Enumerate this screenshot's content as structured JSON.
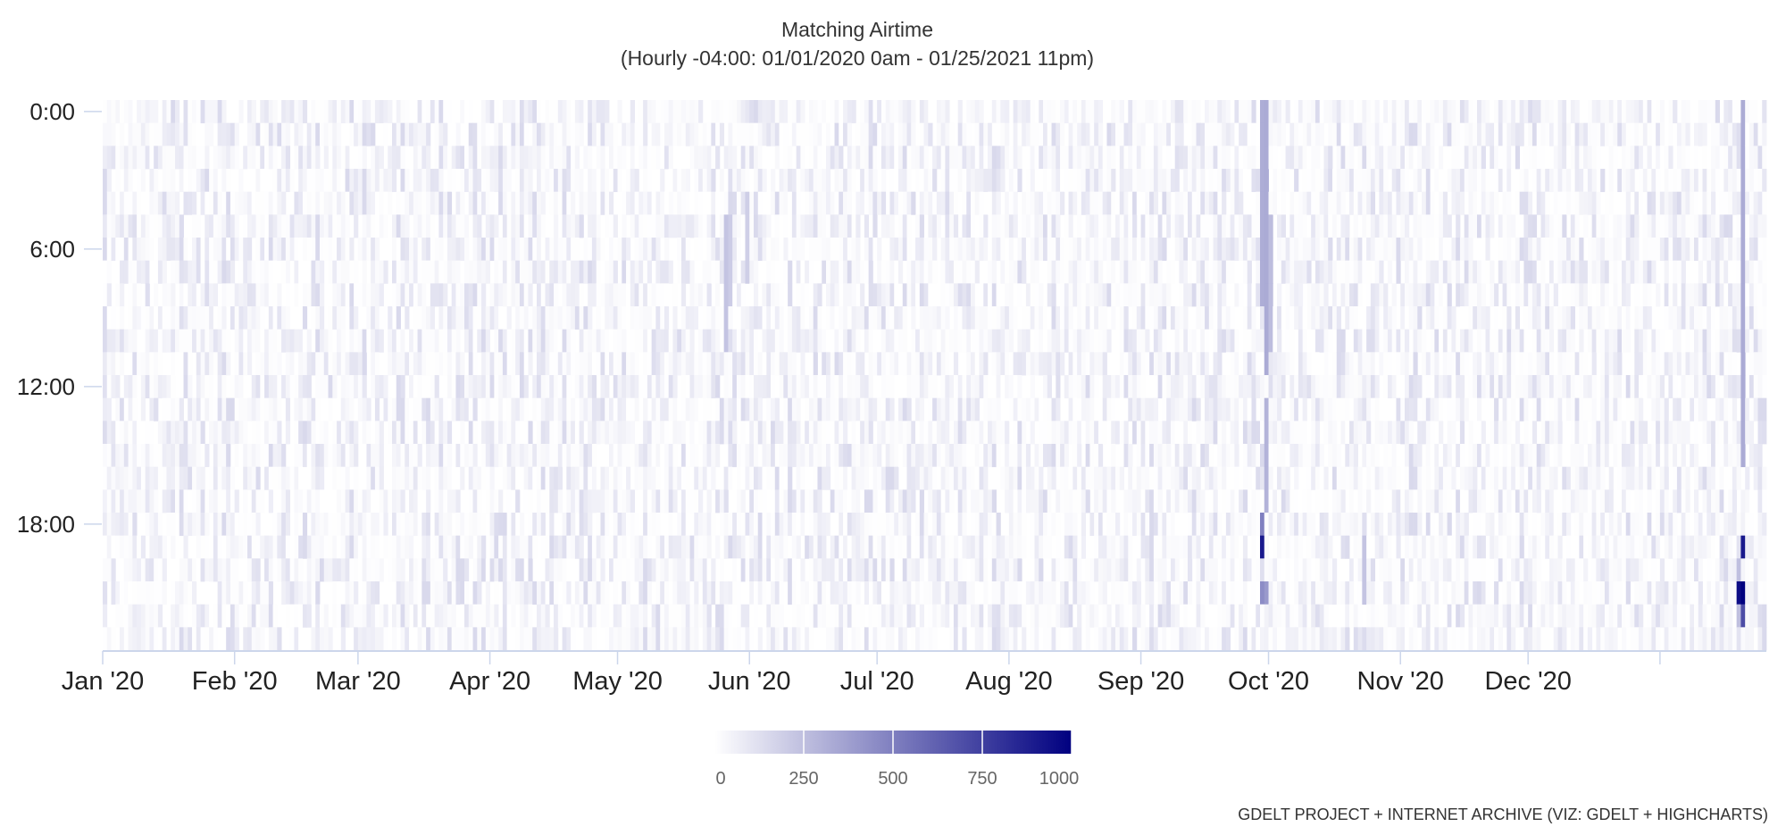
{
  "chart_data": {
    "type": "heatmap",
    "title": "Matching Airtime",
    "subtitle": "(Hourly -04:00: 01/01/2020 0am - 01/25/2021 11pm)",
    "credits": "GDELT PROJECT + INTERNET ARCHIVE (VIZ: GDELT + HIGHCHARTS)",
    "x_range": [
      "2020-01-01",
      "2021-01-25"
    ],
    "x_ticks": [
      {
        "date": "2020-01-01",
        "label": "Jan '20"
      },
      {
        "date": "2020-02-01",
        "label": "Feb '20"
      },
      {
        "date": "2020-03-01",
        "label": "Mar '20"
      },
      {
        "date": "2020-04-01",
        "label": "Apr '20"
      },
      {
        "date": "2020-05-01",
        "label": "May '20"
      },
      {
        "date": "2020-06-01",
        "label": "Jun '20"
      },
      {
        "date": "2020-07-01",
        "label": "Jul '20"
      },
      {
        "date": "2020-08-01",
        "label": "Aug '20"
      },
      {
        "date": "2020-09-01",
        "label": "Sep '20"
      },
      {
        "date": "2020-10-01",
        "label": "Oct '20"
      },
      {
        "date": "2020-11-01",
        "label": "Nov '20"
      },
      {
        "date": "2020-12-01",
        "label": "Dec '20"
      },
      {
        "date": "2021-01-01",
        "label": ""
      }
    ],
    "y_range": [
      0,
      23
    ],
    "y_reversed": true,
    "y_ticks": [
      {
        "hour": 0,
        "label": "0:00"
      },
      {
        "hour": 6,
        "label": "6:00"
      },
      {
        "hour": 12,
        "label": "12:00"
      },
      {
        "hour": 18,
        "label": "18:00"
      }
    ],
    "color_axis": {
      "min": 0,
      "max": 1000,
      "min_color": "#ffffff",
      "max_color": "#000080",
      "ticks": [
        0,
        250,
        500,
        750,
        1000
      ]
    },
    "baseline_value_range": [
      0,
      150
    ],
    "highlights": [
      {
        "date": "2020-05-26",
        "hours": [
          5,
          6,
          7,
          8,
          9,
          10
        ],
        "value": 230
      },
      {
        "date": "2020-05-27",
        "hours": [
          5,
          6,
          7,
          8
        ],
        "value": 200
      },
      {
        "date": "2020-05-31",
        "hours": [
          4,
          5,
          6,
          7
        ],
        "value": 190
      },
      {
        "date": "2020-09-29",
        "hours": [
          0,
          1,
          2,
          3,
          4,
          5,
          6,
          7,
          8
        ],
        "value": 320
      },
      {
        "date": "2020-09-30",
        "hours": [
          0,
          1,
          2,
          3,
          4,
          5,
          6,
          7,
          8,
          9,
          10,
          11
        ],
        "value": 330
      },
      {
        "date": "2020-10-01",
        "hours": [
          5,
          6,
          7,
          8,
          9,
          10
        ],
        "value": 260
      },
      {
        "date": "2020-09-30",
        "hours": [
          13,
          14,
          15,
          16,
          17
        ],
        "value": 300
      },
      {
        "date": "2020-09-29",
        "hours": [
          18
        ],
        "value": 500
      },
      {
        "date": "2020-09-29",
        "hours": [
          19
        ],
        "value": 900
      },
      {
        "date": "2020-09-29",
        "hours": [
          21
        ],
        "value": 450
      },
      {
        "date": "2020-09-30",
        "hours": [
          21
        ],
        "value": 400
      },
      {
        "date": "2020-10-23",
        "hours": [
          19,
          20,
          21
        ],
        "value": 230
      },
      {
        "date": "2021-01-20",
        "hours": [
          0,
          1,
          2,
          3,
          4,
          5,
          6,
          7,
          8,
          9,
          10,
          11,
          12,
          13,
          14,
          15
        ],
        "value": 330
      },
      {
        "date": "2021-01-20",
        "hours": [
          19
        ],
        "value": 900
      },
      {
        "date": "2021-01-20",
        "hours": [
          21
        ],
        "value": 1000
      },
      {
        "date": "2021-01-20",
        "hours": [
          22
        ],
        "value": 700
      },
      {
        "date": "2021-01-19",
        "hours": [
          21
        ],
        "value": 950
      },
      {
        "date": "2021-01-19",
        "hours": [
          20,
          22
        ],
        "value": 250
      }
    ]
  }
}
